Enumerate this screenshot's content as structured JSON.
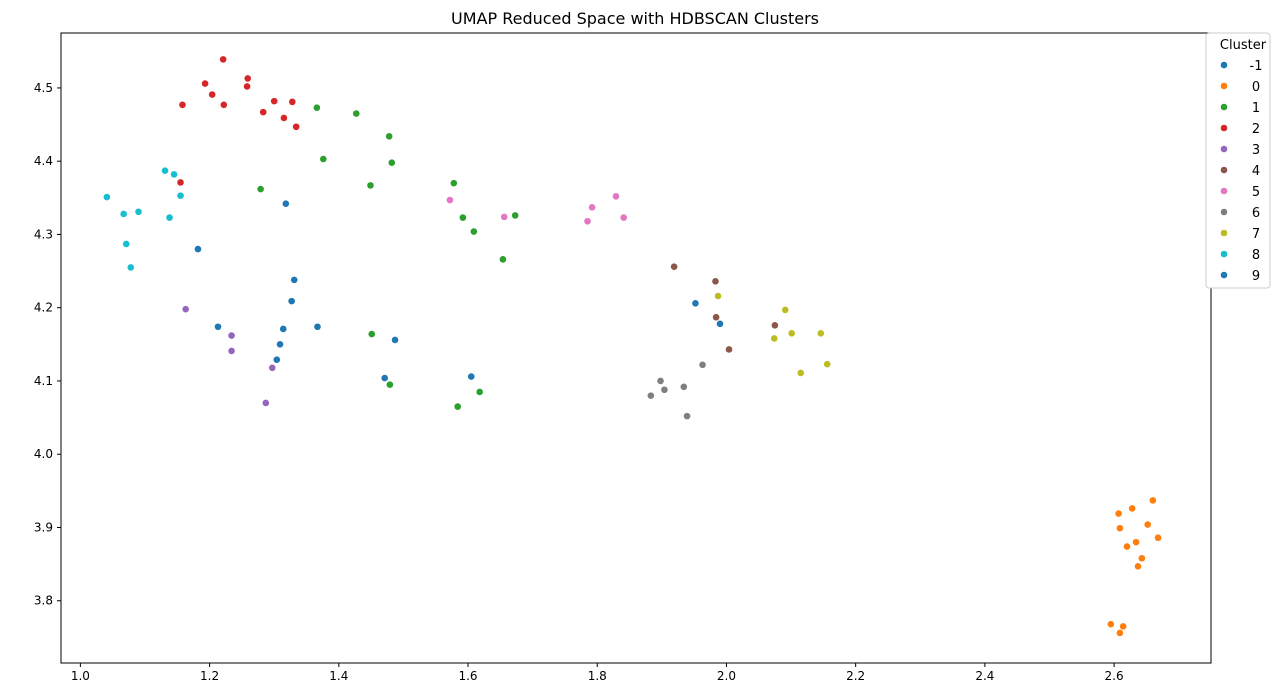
{
  "chart_data": {
    "type": "scatter",
    "title": "UMAP Reduced Space with HDBSCAN Clusters",
    "xlabel": "",
    "ylabel": "",
    "xlim": [
      0.97,
      2.75
    ],
    "ylim": [
      3.715,
      4.575
    ],
    "x_ticks": [
      "1.0",
      "1.2",
      "1.4",
      "1.6",
      "1.8",
      "2.0",
      "2.2",
      "2.4",
      "2.6"
    ],
    "y_ticks": [
      "3.8",
      "3.9",
      "4.0",
      "4.1",
      "4.2",
      "4.3",
      "4.4",
      "4.5"
    ],
    "legend_title": "Cluster",
    "legend_position": "upper right, outside",
    "series": [
      {
        "name": "-1",
        "color": "#1f77b4",
        "points": [
          [
            1.318,
            4.342
          ],
          [
            1.182,
            4.28
          ],
          [
            1.331,
            4.238
          ],
          [
            1.327,
            4.209
          ],
          [
            1.213,
            4.174
          ],
          [
            1.314,
            4.171
          ],
          [
            1.367,
            4.174
          ],
          [
            1.309,
            4.15
          ],
          [
            1.304,
            4.129
          ],
          [
            1.487,
            4.156
          ],
          [
            1.471,
            4.104
          ],
          [
            1.605,
            4.106
          ],
          [
            1.952,
            4.206
          ],
          [
            1.99,
            4.178
          ]
        ]
      },
      {
        "name": "0",
        "color": "#ff7f0e",
        "points": [
          [
            2.66,
            3.937
          ],
          [
            2.628,
            3.926
          ],
          [
            2.607,
            3.919
          ],
          [
            2.652,
            3.904
          ],
          [
            2.609,
            3.899
          ],
          [
            2.668,
            3.886
          ],
          [
            2.634,
            3.88
          ],
          [
            2.62,
            3.874
          ],
          [
            2.643,
            3.858
          ],
          [
            2.637,
            3.847
          ],
          [
            2.595,
            3.768
          ],
          [
            2.614,
            3.765
          ],
          [
            2.609,
            3.756
          ]
        ]
      },
      {
        "name": "1",
        "color": "#2ca02c",
        "points": [
          [
            1.366,
            4.473
          ],
          [
            1.427,
            4.465
          ],
          [
            1.478,
            4.434
          ],
          [
            1.376,
            4.403
          ],
          [
            1.482,
            4.398
          ],
          [
            1.279,
            4.362
          ],
          [
            1.449,
            4.367
          ],
          [
            1.578,
            4.37
          ],
          [
            1.592,
            4.323
          ],
          [
            1.609,
            4.304
          ],
          [
            1.673,
            4.326
          ],
          [
            1.654,
            4.266
          ],
          [
            1.451,
            4.164
          ],
          [
            1.479,
            4.095
          ],
          [
            1.584,
            4.065
          ],
          [
            1.618,
            4.085
          ]
        ]
      },
      {
        "name": "2",
        "color": "#d62728",
        "points": [
          [
            1.221,
            4.539
          ],
          [
            1.259,
            4.513
          ],
          [
            1.193,
            4.506
          ],
          [
            1.258,
            4.502
          ],
          [
            1.204,
            4.491
          ],
          [
            1.3,
            4.482
          ],
          [
            1.328,
            4.481
          ],
          [
            1.158,
            4.477
          ],
          [
            1.222,
            4.477
          ],
          [
            1.283,
            4.467
          ],
          [
            1.315,
            4.459
          ],
          [
            1.334,
            4.447
          ],
          [
            1.155,
            4.371
          ]
        ]
      },
      {
        "name": "3",
        "color": "#9467bd",
        "points": [
          [
            1.163,
            4.198
          ],
          [
            1.234,
            4.162
          ],
          [
            1.234,
            4.141
          ],
          [
            1.297,
            4.118
          ],
          [
            1.287,
            4.07
          ]
        ]
      },
      {
        "name": "4",
        "color": "#8c564b",
        "points": [
          [
            1.919,
            4.256
          ],
          [
            1.983,
            4.236
          ],
          [
            1.984,
            4.187
          ],
          [
            2.075,
            4.176
          ],
          [
            2.004,
            4.143
          ]
        ]
      },
      {
        "name": "5",
        "color": "#e377c2",
        "points": [
          [
            1.572,
            4.347
          ],
          [
            1.829,
            4.352
          ],
          [
            1.792,
            4.337
          ],
          [
            1.656,
            4.324
          ],
          [
            1.841,
            4.323
          ],
          [
            1.785,
            4.318
          ]
        ]
      },
      {
        "name": "6",
        "color": "#7f7f7f",
        "points": [
          [
            1.963,
            4.122
          ],
          [
            1.898,
            4.1
          ],
          [
            1.934,
            4.092
          ],
          [
            1.904,
            4.088
          ],
          [
            1.883,
            4.08
          ],
          [
            1.939,
            4.052
          ]
        ]
      },
      {
        "name": "7",
        "color": "#bcbd22",
        "points": [
          [
            1.987,
            4.216
          ],
          [
            2.091,
            4.197
          ],
          [
            2.101,
            4.165
          ],
          [
            2.146,
            4.165
          ],
          [
            2.074,
            4.158
          ],
          [
            2.156,
            4.123
          ],
          [
            2.115,
            4.111
          ]
        ]
      },
      {
        "name": "8",
        "color": "#17becf",
        "points": [
          [
            1.131,
            4.387
          ],
          [
            1.145,
            4.382
          ],
          [
            1.155,
            4.353
          ],
          [
            1.041,
            4.351
          ],
          [
            1.09,
            4.331
          ],
          [
            1.067,
            4.328
          ],
          [
            1.138,
            4.323
          ],
          [
            1.071,
            4.287
          ],
          [
            1.078,
            4.255
          ]
        ]
      },
      {
        "name": "9",
        "color": "#1f77b4",
        "points": []
      }
    ]
  }
}
